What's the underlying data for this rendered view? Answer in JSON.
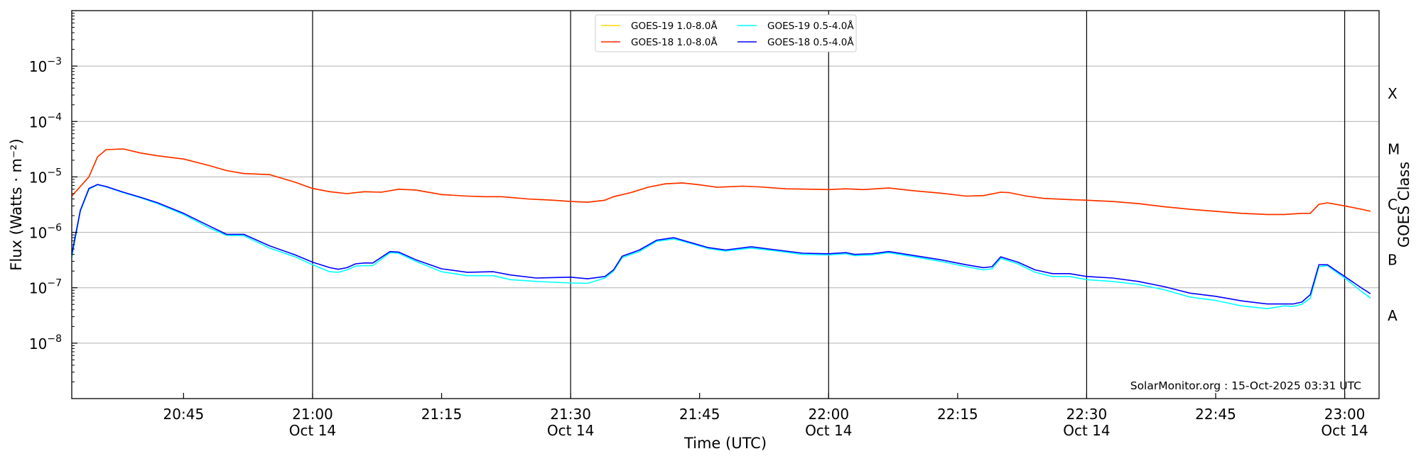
{
  "chart_data": {
    "type": "line",
    "y_scale": "log",
    "ylim": [
      1e-09,
      0.01
    ],
    "x_range": [
      "2025-10-14 20:32",
      "2025-10-14 23:04"
    ],
    "grid": "horizontal",
    "legend_position": "top-center",
    "ylabel": "Flux (Watts · m⁻²)",
    "xlabel": "Time (UTC)",
    "y_right_label": "GOES Class",
    "y_ticks": [
      {
        "value": 1e-08,
        "label": "10",
        "exp": "−8"
      },
      {
        "value": 1e-07,
        "label": "10",
        "exp": "−7"
      },
      {
        "value": 1e-06,
        "label": "10",
        "exp": "−6"
      },
      {
        "value": 1e-05,
        "label": "10",
        "exp": "−5"
      },
      {
        "value": 0.0001,
        "label": "10",
        "exp": "−4"
      },
      {
        "value": 0.001,
        "label": "10",
        "exp": "−3"
      }
    ],
    "goes_classes": [
      {
        "label": "A",
        "value": 3.16e-08
      },
      {
        "label": "B",
        "value": 3.16e-07
      },
      {
        "label": "C",
        "value": 3.16e-06
      },
      {
        "label": "M",
        "value": 3.16e-05
      },
      {
        "label": "X",
        "value": 0.000316
      }
    ],
    "x_ticks": [
      {
        "time": "20:45",
        "date": ""
      },
      {
        "time": "21:00",
        "date": "Oct 14"
      },
      {
        "time": "21:15",
        "date": ""
      },
      {
        "time": "21:30",
        "date": "Oct 14"
      },
      {
        "time": "21:45",
        "date": ""
      },
      {
        "time": "22:00",
        "date": "Oct 14"
      },
      {
        "time": "22:15",
        "date": ""
      },
      {
        "time": "22:30",
        "date": "Oct 14"
      },
      {
        "time": "22:45",
        "date": ""
      },
      {
        "time": "23:00",
        "date": "Oct 14"
      }
    ],
    "vertical_lines": [
      "21:00",
      "21:30",
      "22:00",
      "22:30",
      "23:00"
    ],
    "series": [
      {
        "name": "GOES-19 1.0-8.0Å",
        "color": "#FFD700",
        "x": [
          "20:32",
          "20:34",
          "20:35",
          "20:36",
          "20:38",
          "20:40",
          "20:42",
          "20:45",
          "20:48",
          "20:50",
          "20:52",
          "20:55",
          "20:58",
          "21:00",
          "21:02",
          "21:04",
          "21:06",
          "21:08",
          "21:10",
          "21:12",
          "21:15",
          "21:18",
          "21:20",
          "21:22",
          "21:25",
          "21:28",
          "21:30",
          "21:32",
          "21:34",
          "21:35",
          "21:37",
          "21:39",
          "21:41",
          "21:43",
          "21:45",
          "21:47",
          "21:50",
          "21:52",
          "21:55",
          "21:58",
          "22:00",
          "22:02",
          "22:04",
          "22:07",
          "22:10",
          "22:13",
          "22:16",
          "22:18",
          "22:20",
          "22:21",
          "22:23",
          "22:25",
          "22:28",
          "22:30",
          "22:33",
          "22:36",
          "22:39",
          "22:42",
          "22:45",
          "22:48",
          "22:51",
          "22:53",
          "22:55",
          "22:56",
          "22:57",
          "22:58",
          "23:00",
          "23:02",
          "23:03"
        ],
        "y": [
          4.5e-06,
          1e-05,
          2.3e-05,
          3.1e-05,
          3.2e-05,
          2.7e-05,
          2.4e-05,
          2.1e-05,
          1.6e-05,
          1.3e-05,
          1.15e-05,
          1.1e-05,
          8e-06,
          6.2e-06,
          5.4e-06,
          5e-06,
          5.4e-06,
          5.3e-06,
          6e-06,
          5.8e-06,
          4.8e-06,
          4.5e-06,
          4.4e-06,
          4.4e-06,
          4e-06,
          3.8e-06,
          3.6e-06,
          3.5e-06,
          3.8e-06,
          4.4e-06,
          5.2e-06,
          6.5e-06,
          7.5e-06,
          7.8e-06,
          7.2e-06,
          6.5e-06,
          6.8e-06,
          6.6e-06,
          6.1e-06,
          6e-06,
          5.9e-06,
          6.1e-06,
          5.9e-06,
          6.3e-06,
          5.6e-06,
          5.1e-06,
          4.5e-06,
          4.6e-06,
          5.3e-06,
          5.2e-06,
          4.5e-06,
          4.1e-06,
          3.9e-06,
          3.8e-06,
          3.6e-06,
          3.3e-06,
          2.9e-06,
          2.6e-06,
          2.4e-06,
          2.2e-06,
          2.1e-06,
          2.1e-06,
          2.2e-06,
          2.2e-06,
          3.2e-06,
          3.4e-06,
          3e-06,
          2.6e-06,
          2.4e-06
        ]
      },
      {
        "name": "GOES-18 1.0-8.0Å",
        "color": "#FF2A00",
        "x": [
          "20:32",
          "20:34",
          "20:35",
          "20:36",
          "20:38",
          "20:40",
          "20:42",
          "20:45",
          "20:48",
          "20:50",
          "20:52",
          "20:55",
          "20:58",
          "21:00",
          "21:02",
          "21:04",
          "21:06",
          "21:08",
          "21:10",
          "21:12",
          "21:15",
          "21:18",
          "21:20",
          "21:22",
          "21:25",
          "21:28",
          "21:30",
          "21:32",
          "21:34",
          "21:35",
          "21:37",
          "21:39",
          "21:41",
          "21:43",
          "21:45",
          "21:47",
          "21:50",
          "21:52",
          "21:55",
          "21:58",
          "22:00",
          "22:02",
          "22:04",
          "22:07",
          "22:10",
          "22:13",
          "22:16",
          "22:18",
          "22:20",
          "22:21",
          "22:23",
          "22:25",
          "22:28",
          "22:30",
          "22:33",
          "22:36",
          "22:39",
          "22:42",
          "22:45",
          "22:48",
          "22:51",
          "22:53",
          "22:55",
          "22:56",
          "22:57",
          "22:58",
          "23:00",
          "23:02",
          "23:03"
        ],
        "y": [
          4.5e-06,
          1e-05,
          2.3e-05,
          3.1e-05,
          3.2e-05,
          2.7e-05,
          2.4e-05,
          2.1e-05,
          1.6e-05,
          1.3e-05,
          1.15e-05,
          1.1e-05,
          8e-06,
          6.2e-06,
          5.4e-06,
          5e-06,
          5.4e-06,
          5.3e-06,
          6e-06,
          5.8e-06,
          4.8e-06,
          4.5e-06,
          4.4e-06,
          4.4e-06,
          4e-06,
          3.8e-06,
          3.6e-06,
          3.5e-06,
          3.8e-06,
          4.4e-06,
          5.2e-06,
          6.5e-06,
          7.5e-06,
          7.8e-06,
          7.2e-06,
          6.5e-06,
          6.8e-06,
          6.6e-06,
          6.1e-06,
          6e-06,
          5.9e-06,
          6.1e-06,
          5.9e-06,
          6.3e-06,
          5.6e-06,
          5.1e-06,
          4.5e-06,
          4.6e-06,
          5.3e-06,
          5.2e-06,
          4.5e-06,
          4.1e-06,
          3.9e-06,
          3.8e-06,
          3.6e-06,
          3.3e-06,
          2.9e-06,
          2.6e-06,
          2.4e-06,
          2.2e-06,
          2.1e-06,
          2.1e-06,
          2.2e-06,
          2.2e-06,
          3.2e-06,
          3.4e-06,
          3e-06,
          2.6e-06,
          2.4e-06
        ]
      },
      {
        "name": "GOES-19 0.5-4.0Å",
        "color": "#00FFFF",
        "x": [
          "20:32",
          "20:33",
          "20:34",
          "20:35",
          "20:36",
          "20:38",
          "20:40",
          "20:42",
          "20:45",
          "20:48",
          "20:50",
          "20:52",
          "20:55",
          "20:58",
          "21:00",
          "21:02",
          "21:03",
          "21:04",
          "21:05",
          "21:06",
          "21:07",
          "21:09",
          "21:10",
          "21:12",
          "21:15",
          "21:18",
          "21:21",
          "21:23",
          "21:26",
          "21:30",
          "21:32",
          "21:34",
          "21:35",
          "21:36",
          "21:38",
          "21:40",
          "21:42",
          "21:44",
          "21:46",
          "21:48",
          "21:51",
          "21:54",
          "21:57",
          "22:00",
          "22:02",
          "22:03",
          "22:05",
          "22:07",
          "22:10",
          "22:13",
          "22:16",
          "22:18",
          "22:19",
          "22:20",
          "22:22",
          "22:24",
          "22:26",
          "22:28",
          "22:30",
          "22:33",
          "22:36",
          "22:39",
          "22:42",
          "22:45",
          "22:48",
          "22:51",
          "22:53",
          "22:54",
          "22:55",
          "22:56",
          "22:57",
          "22:58",
          "23:00",
          "23:02",
          "23:03"
        ],
        "y": [
          3.5e-07,
          2.4e-06,
          6e-06,
          7.2e-06,
          6.6e-06,
          5.2e-06,
          4.2e-06,
          3.3e-06,
          2.1e-06,
          1.2e-06,
          8.8e-07,
          8.7e-07,
          5.2e-07,
          3.6e-07,
          2.6e-07,
          1.95e-07,
          1.9e-07,
          2.1e-07,
          2.45e-07,
          2.5e-07,
          2.5e-07,
          4.3e-07,
          4.2e-07,
          3e-07,
          1.95e-07,
          1.65e-07,
          1.65e-07,
          1.4e-07,
          1.3e-07,
          1.22e-07,
          1.2e-07,
          1.5e-07,
          2e-07,
          3.5e-07,
          4.5e-07,
          6.9e-07,
          7.6e-07,
          6.3e-07,
          5.1e-07,
          4.6e-07,
          5.2e-07,
          4.6e-07,
          4e-07,
          3.9e-07,
          4.1e-07,
          3.8e-07,
          3.9e-07,
          4.3e-07,
          3.6e-07,
          3e-07,
          2.4e-07,
          2.1e-07,
          2.2e-07,
          3.4e-07,
          2.7e-07,
          1.9e-07,
          1.6e-07,
          1.6e-07,
          1.4e-07,
          1.3e-07,
          1.15e-07,
          9.2e-08,
          6.8e-08,
          5.9e-08,
          4.7e-08,
          4.2e-08,
          4.7e-08,
          4.6e-08,
          5e-08,
          6.5e-08,
          2.4e-07,
          2.5e-07,
          1.5e-07,
          8.5e-08,
          6.5e-08
        ]
      },
      {
        "name": "GOES-18 0.5-4.0Å",
        "color": "#0000FF",
        "x": [
          "20:32",
          "20:33",
          "20:34",
          "20:35",
          "20:36",
          "20:38",
          "20:40",
          "20:42",
          "20:45",
          "20:48",
          "20:50",
          "20:52",
          "20:55",
          "20:58",
          "21:00",
          "21:02",
          "21:03",
          "21:04",
          "21:05",
          "21:06",
          "21:07",
          "21:09",
          "21:10",
          "21:12",
          "21:15",
          "21:18",
          "21:21",
          "21:23",
          "21:26",
          "21:30",
          "21:32",
          "21:34",
          "21:35",
          "21:36",
          "21:38",
          "21:40",
          "21:42",
          "21:44",
          "21:46",
          "21:48",
          "21:51",
          "21:54",
          "21:57",
          "22:00",
          "22:02",
          "22:03",
          "22:05",
          "22:07",
          "22:10",
          "22:13",
          "22:16",
          "22:18",
          "22:19",
          "22:20",
          "22:22",
          "22:24",
          "22:26",
          "22:28",
          "22:30",
          "22:33",
          "22:36",
          "22:39",
          "22:42",
          "22:45",
          "22:48",
          "22:51",
          "22:53",
          "22:54",
          "22:55",
          "22:56",
          "22:57",
          "22:58",
          "23:00",
          "23:02",
          "23:03"
        ],
        "y": [
          4e-07,
          2.5e-06,
          6.2e-06,
          7.3e-06,
          6.7e-06,
          5.3e-06,
          4.3e-06,
          3.4e-06,
          2.2e-06,
          1.3e-06,
          9.2e-07,
          9.2e-07,
          5.7e-07,
          3.9e-07,
          2.9e-07,
          2.3e-07,
          2.15e-07,
          2.3e-07,
          2.7e-07,
          2.8e-07,
          2.8e-07,
          4.5e-07,
          4.4e-07,
          3.2e-07,
          2.2e-07,
          1.9e-07,
          1.95e-07,
          1.7e-07,
          1.5e-07,
          1.55e-07,
          1.45e-07,
          1.6e-07,
          2.1e-07,
          3.7e-07,
          4.8e-07,
          7.2e-07,
          8e-07,
          6.5e-07,
          5.3e-07,
          4.8e-07,
          5.5e-07,
          4.8e-07,
          4.2e-07,
          4.1e-07,
          4.3e-07,
          4e-07,
          4.1e-07,
          4.5e-07,
          3.8e-07,
          3.2e-07,
          2.6e-07,
          2.3e-07,
          2.4e-07,
          3.6e-07,
          2.9e-07,
          2.1e-07,
          1.8e-07,
          1.8e-07,
          1.6e-07,
          1.5e-07,
          1.3e-07,
          1.05e-07,
          8e-08,
          7e-08,
          5.8e-08,
          5.1e-08,
          5.1e-08,
          5.1e-08,
          5.5e-08,
          7.5e-08,
          2.6e-07,
          2.6e-07,
          1.6e-07,
          9.8e-08,
          7.8e-08
        ]
      }
    ],
    "credit": "SolarMonitor.org : 15-Oct-2025 03:31 UTC"
  }
}
